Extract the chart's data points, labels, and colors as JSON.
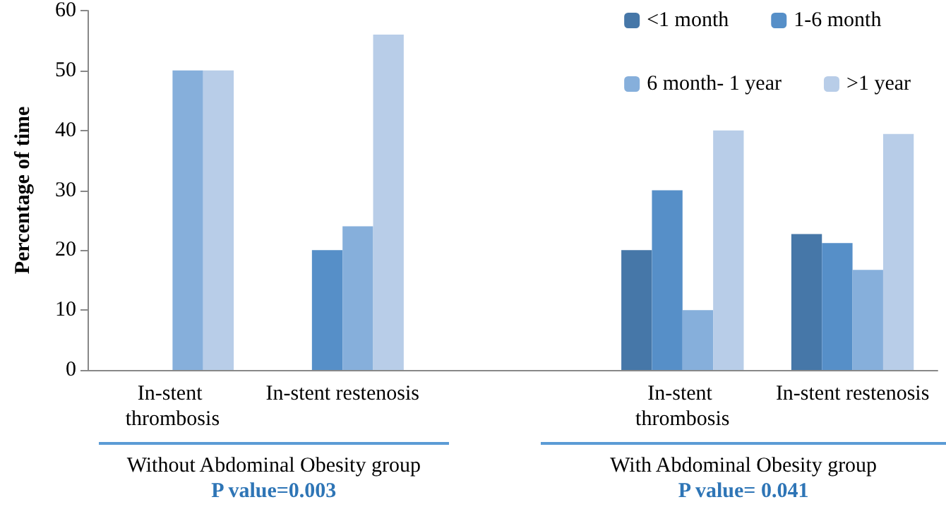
{
  "chart_data": {
    "type": "bar",
    "ylabel": "Percentage of time",
    "categories": [
      "In-stent thrombosis",
      "In-stent restenosis",
      null,
      "In-stent thrombosis",
      "In-stent restenosis"
    ],
    "series": [
      {
        "name": "<1 month",
        "color": "#4677a8",
        "values": [
          null,
          null,
          null,
          20,
          22.7
        ]
      },
      {
        "name": "1-6 month",
        "color": "#568fc8",
        "values": [
          null,
          20,
          null,
          30,
          21.2
        ]
      },
      {
        "name": "6 month- 1 year",
        "color": "#86afdb",
        "values": [
          50,
          24,
          null,
          10,
          16.7
        ]
      },
      {
        "name": ">1 year",
        "color": "#b8cde8",
        "values": [
          50,
          56,
          null,
          40,
          39.4
        ]
      }
    ],
    "ylim": [
      0,
      60
    ],
    "yticks": [
      0,
      10,
      20,
      30,
      40,
      50,
      60
    ],
    "grid": false,
    "legend": "top right",
    "annotations": [
      "Without Abdominal Obesity group",
      "P value=0.003",
      "With Abdominal Obesity group",
      "P value= 0.041"
    ]
  }
}
